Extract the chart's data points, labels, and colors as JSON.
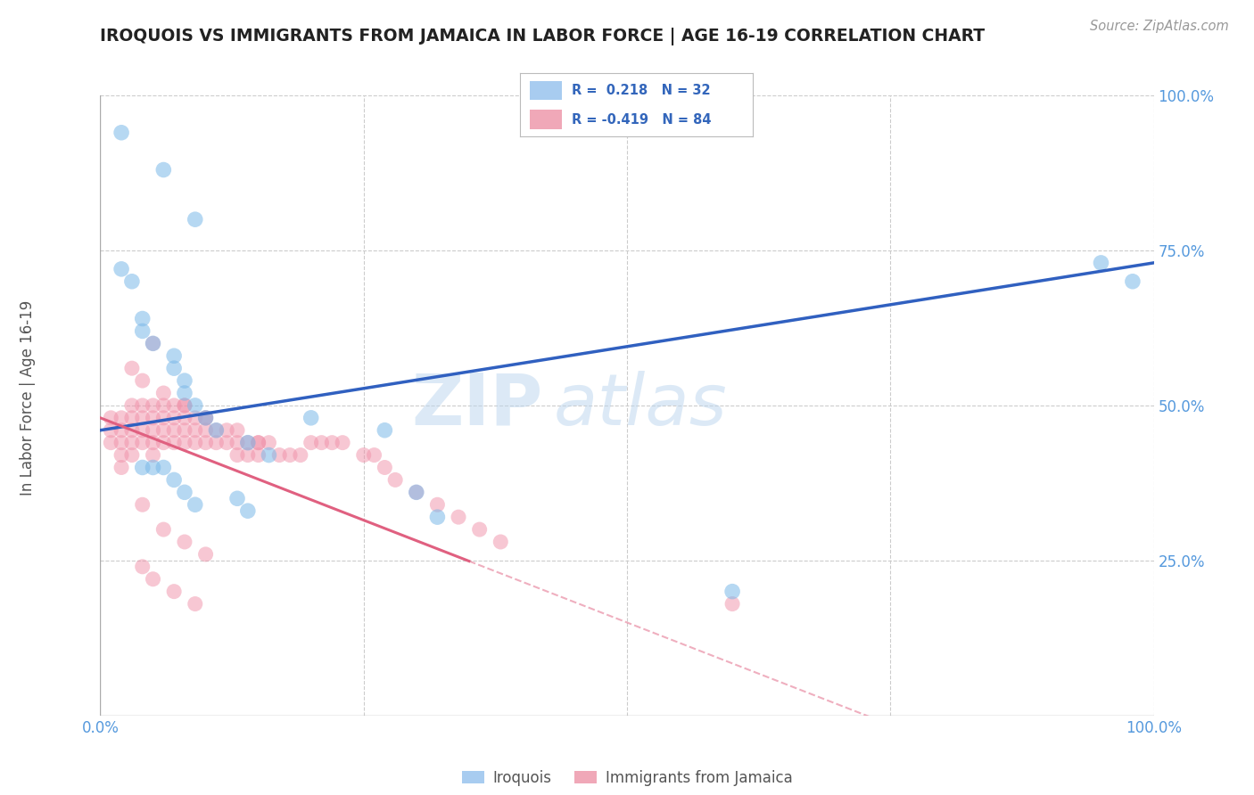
{
  "title": "IROQUOIS VS IMMIGRANTS FROM JAMAICA IN LABOR FORCE | AGE 16-19 CORRELATION CHART",
  "source": "Source: ZipAtlas.com",
  "ylabel": "In Labor Force | Age 16-19",
  "watermark_zip": "ZIP",
  "watermark_atlas": "atlas",
  "iroquois_color": "#7ab8e8",
  "jamaica_color": "#f090a8",
  "iroquois_line_color": "#3060c0",
  "jamaica_line_color": "#e06080",
  "background_color": "#ffffff",
  "axis_label_color": "#5599dd",
  "legend_box_color": "#a8ccf0",
  "legend_pink_color": "#f0a8b8",
  "xlim": [
    0.0,
    1.0
  ],
  "ylim": [
    0.0,
    1.0
  ],
  "iroquois_x": [
    0.02,
    0.06,
    0.09,
    0.02,
    0.03,
    0.04,
    0.04,
    0.05,
    0.07,
    0.07,
    0.08,
    0.08,
    0.09,
    0.1,
    0.11,
    0.14,
    0.16,
    0.2,
    0.27,
    0.95,
    0.98,
    0.04,
    0.05,
    0.06,
    0.3,
    0.07,
    0.08,
    0.09,
    0.13,
    0.14,
    0.32,
    0.6
  ],
  "iroquois_y": [
    0.94,
    0.88,
    0.8,
    0.72,
    0.7,
    0.64,
    0.62,
    0.6,
    0.58,
    0.56,
    0.54,
    0.52,
    0.5,
    0.48,
    0.46,
    0.44,
    0.42,
    0.48,
    0.46,
    0.73,
    0.7,
    0.4,
    0.4,
    0.4,
    0.36,
    0.38,
    0.36,
    0.34,
    0.35,
    0.33,
    0.32,
    0.2
  ],
  "jamaica_x": [
    0.01,
    0.01,
    0.01,
    0.02,
    0.02,
    0.02,
    0.02,
    0.02,
    0.03,
    0.03,
    0.03,
    0.03,
    0.03,
    0.04,
    0.04,
    0.04,
    0.04,
    0.05,
    0.05,
    0.05,
    0.05,
    0.05,
    0.06,
    0.06,
    0.06,
    0.06,
    0.07,
    0.07,
    0.07,
    0.07,
    0.08,
    0.08,
    0.08,
    0.08,
    0.09,
    0.09,
    0.09,
    0.1,
    0.1,
    0.1,
    0.11,
    0.11,
    0.12,
    0.12,
    0.13,
    0.13,
    0.14,
    0.14,
    0.15,
    0.15,
    0.16,
    0.17,
    0.18,
    0.19,
    0.2,
    0.21,
    0.22,
    0.23,
    0.25,
    0.26,
    0.27,
    0.28,
    0.3,
    0.32,
    0.34,
    0.36,
    0.38,
    0.03,
    0.04,
    0.05,
    0.06,
    0.08,
    0.1,
    0.13,
    0.15,
    0.04,
    0.06,
    0.08,
    0.1,
    0.6,
    0.04,
    0.05,
    0.07,
    0.09
  ],
  "jamaica_y": [
    0.48,
    0.46,
    0.44,
    0.48,
    0.46,
    0.44,
    0.42,
    0.4,
    0.5,
    0.48,
    0.46,
    0.44,
    0.42,
    0.5,
    0.48,
    0.46,
    0.44,
    0.5,
    0.48,
    0.46,
    0.44,
    0.42,
    0.5,
    0.48,
    0.46,
    0.44,
    0.5,
    0.48,
    0.46,
    0.44,
    0.5,
    0.48,
    0.46,
    0.44,
    0.48,
    0.46,
    0.44,
    0.48,
    0.46,
    0.44,
    0.46,
    0.44,
    0.46,
    0.44,
    0.44,
    0.42,
    0.44,
    0.42,
    0.44,
    0.42,
    0.44,
    0.42,
    0.42,
    0.42,
    0.44,
    0.44,
    0.44,
    0.44,
    0.42,
    0.42,
    0.4,
    0.38,
    0.36,
    0.34,
    0.32,
    0.3,
    0.28,
    0.56,
    0.54,
    0.6,
    0.52,
    0.5,
    0.48,
    0.46,
    0.44,
    0.34,
    0.3,
    0.28,
    0.26,
    0.18,
    0.24,
    0.22,
    0.2,
    0.18
  ]
}
